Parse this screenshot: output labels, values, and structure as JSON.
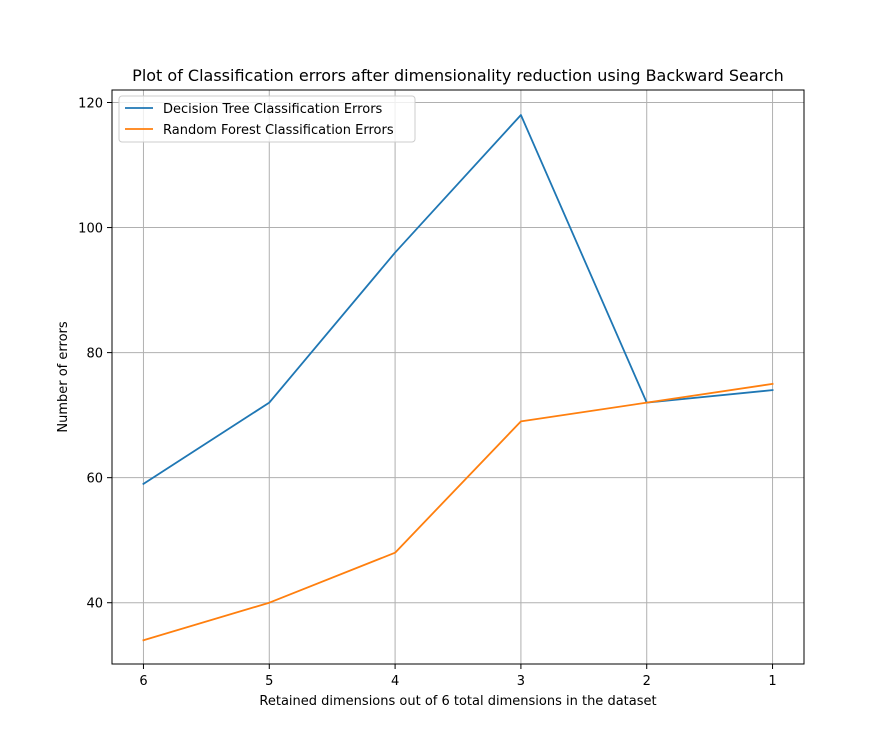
{
  "chart_data": {
    "type": "line",
    "title": "Plot of Classification errors after dimensionality reduction using Backward Search",
    "xlabel": "Retained dimensions out of 6 total dimensions in the dataset",
    "ylabel": "Number of errors",
    "x": [
      6,
      5,
      4,
      3,
      2,
      1
    ],
    "x_tick_labels": [
      "6",
      "5",
      "4",
      "3",
      "2",
      "1"
    ],
    "xlim": [
      6.25,
      0.75
    ],
    "ylim": [
      30.2,
      122.0
    ],
    "y_ticks": [
      40,
      60,
      80,
      100,
      120
    ],
    "y_tick_labels": [
      "40",
      "60",
      "80",
      "100",
      "120"
    ],
    "grid": true,
    "legend_position": "top-left",
    "series": [
      {
        "name": "Decision Tree Classification Errors",
        "color": "#1f77b4",
        "values": [
          59,
          72,
          96,
          118,
          72,
          74
        ]
      },
      {
        "name": "Random Forest Classification Errors",
        "color": "#ff7f0e",
        "values": [
          34,
          40,
          48,
          69,
          72,
          75
        ]
      }
    ]
  }
}
